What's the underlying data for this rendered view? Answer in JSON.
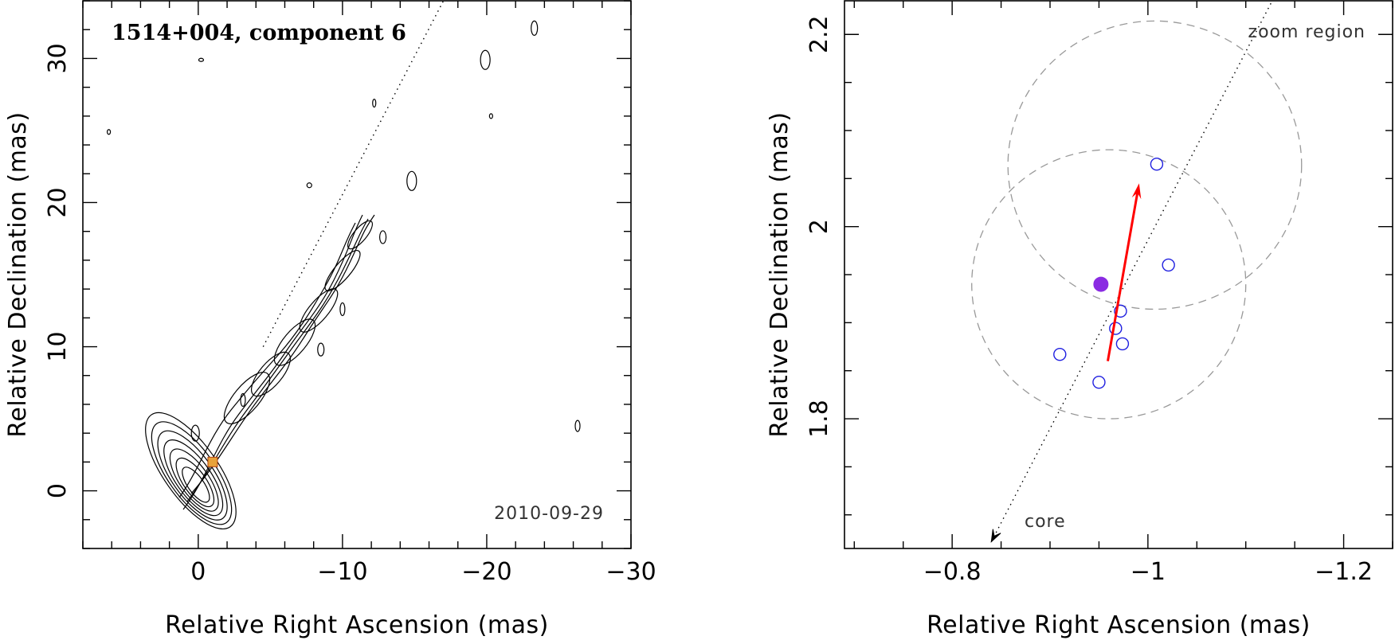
{
  "chart_data": [
    {
      "type": "contour",
      "title": "1514+004, component 6",
      "epoch": "2010-09-29",
      "xlabel": "Relative Right Ascension (mas)",
      "ylabel": "Relative Declination (mas)",
      "xlim": [
        8,
        -30
      ],
      "ylim": [
        -4,
        34
      ],
      "xticks": [
        "0",
        "−10",
        "−20",
        "−30"
      ],
      "xtick_values": [
        0,
        -10,
        -20,
        -30
      ],
      "yticks": [
        "0",
        "10",
        "20",
        "30"
      ],
      "ytick_values": [
        0,
        10,
        20,
        30
      ],
      "jet_axis_line": {
        "x": [
          -4.5,
          -17
        ],
        "y": [
          10,
          34
        ]
      },
      "component_marker": {
        "x": -1.0,
        "y": 2.0,
        "color": "#e8a23a"
      },
      "contour_color": "#000000"
    },
    {
      "type": "scatter",
      "xlabel": "Relative Right Ascension (mas)",
      "ylabel": "Relative Declination (mas)",
      "xlim": [
        -0.69,
        -1.25
      ],
      "ylim": [
        1.665,
        2.235
      ],
      "xticks": [
        "−0.8",
        "−1",
        "−1.2"
      ],
      "xtick_values": [
        -0.8,
        -1.0,
        -1.2
      ],
      "yticks": [
        "1.8",
        "2",
        "2.2"
      ],
      "ytick_values": [
        1.8,
        2.0,
        2.2
      ],
      "zoom_label": "zoom region",
      "core_label": "core",
      "open_points": {
        "color": "#2020e0",
        "x": [
          -0.91,
          -0.95,
          -0.967,
          -0.974,
          -0.972,
          -1.009,
          -1.021
        ],
        "y": [
          1.867,
          1.838,
          1.894,
          1.878,
          1.912,
          2.065,
          1.96
        ]
      },
      "filled_point": {
        "x": -0.952,
        "y": 1.94,
        "color": "#8a2be2"
      },
      "velocity_arrow": {
        "x": [
          -0.959,
          -0.991
        ],
        "y": [
          1.86,
          2.045
        ],
        "color": "#ff0000"
      },
      "circles": [
        {
          "cx": -0.96,
          "cy": 1.94,
          "r": 0.14
        },
        {
          "cx": -1.007,
          "cy": 2.064,
          "r": 0.15
        }
      ],
      "jet_axis_line": {
        "x": [
          -0.84,
          -1.127
        ],
        "y": [
          1.672,
          2.235
        ]
      }
    }
  ]
}
